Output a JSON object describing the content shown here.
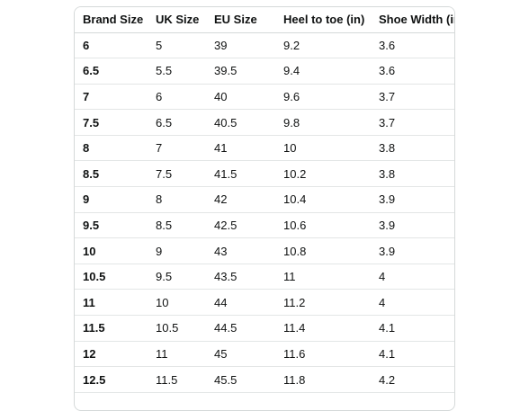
{
  "table": {
    "headers": [
      "Brand Size",
      "UK Size",
      "EU Size",
      "Heel to toe (in)",
      "Shoe Width (in)"
    ],
    "rows": [
      [
        "6",
        "5",
        "39",
        "9.2",
        "3.6"
      ],
      [
        "6.5",
        "5.5",
        "39.5",
        "9.4",
        "3.6"
      ],
      [
        "7",
        "6",
        "40",
        "9.6",
        "3.7"
      ],
      [
        "7.5",
        "6.5",
        "40.5",
        "9.8",
        "3.7"
      ],
      [
        "8",
        "7",
        "41",
        "10",
        "3.8"
      ],
      [
        "8.5",
        "7.5",
        "41.5",
        "10.2",
        "3.8"
      ],
      [
        "9",
        "8",
        "42",
        "10.4",
        "3.9"
      ],
      [
        "9.5",
        "8.5",
        "42.5",
        "10.6",
        "3.9"
      ],
      [
        "10",
        "9",
        "43",
        "10.8",
        "3.9"
      ],
      [
        "10.5",
        "9.5",
        "43.5",
        "11",
        "4"
      ],
      [
        "11",
        "10",
        "44",
        "11.2",
        "4"
      ],
      [
        "11.5",
        "10.5",
        "44.5",
        "11.4",
        "4.1"
      ],
      [
        "12",
        "11",
        "45",
        "11.6",
        "4.1"
      ],
      [
        "12.5",
        "11.5",
        "45.5",
        "11.8",
        "4.2"
      ]
    ]
  }
}
